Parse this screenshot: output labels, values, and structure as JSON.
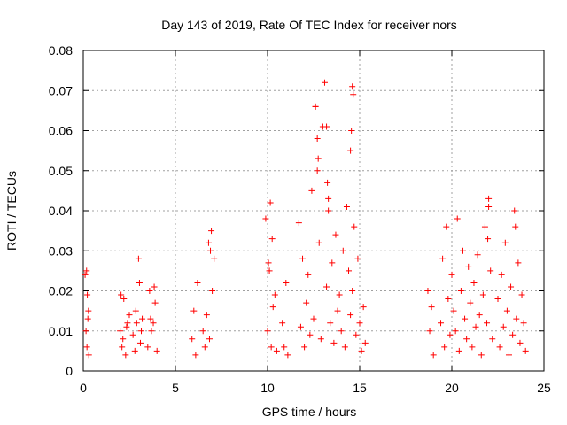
{
  "chart_data": {
    "type": "scatter",
    "title": "Day 143 of 2019, Rate Of TEC Index for receiver nors",
    "xlabel": "GPS time / hours",
    "ylabel": "ROTI / TECUs",
    "xlim": [
      0,
      25
    ],
    "ylim": [
      0,
      0.08
    ],
    "xticks": [
      0,
      5,
      10,
      15,
      20,
      25
    ],
    "yticks": [
      0,
      0.01,
      0.02,
      0.03,
      0.04,
      0.05,
      0.06,
      0.07,
      0.08
    ],
    "xtick_labels": [
      "0",
      "5",
      "10",
      "15",
      "20",
      "25"
    ],
    "ytick_labels": [
      "0",
      "0.01",
      "0.02",
      "0.03",
      "0.04",
      "0.05",
      "0.06",
      "0.07",
      "0.08"
    ],
    "grid": true,
    "marker": "+",
    "color": "#ff0000",
    "x": [
      0.1,
      0.15,
      0.2,
      0.25,
      0.3,
      0.18,
      0.22,
      0.28,
      2.0,
      2.1,
      2.2,
      2.3,
      2.4,
      2.5,
      2.05,
      2.15,
      2.35,
      2.7,
      2.8,
      2.9,
      3.0,
      3.1,
      3.2,
      2.85,
      3.05,
      3.15,
      3.5,
      3.6,
      3.7,
      3.8,
      3.9,
      4.0,
      3.65,
      3.85,
      5.9,
      6.0,
      6.1,
      6.2,
      6.5,
      6.6,
      6.7,
      6.8,
      6.9,
      7.0,
      7.1,
      6.95,
      6.85,
      9.9,
      10.0,
      10.1,
      10.2,
      10.3,
      10.4,
      10.5,
      10.05,
      10.25,
      10.15,
      10.8,
      10.9,
      11.0,
      11.1,
      11.7,
      11.8,
      11.9,
      12.0,
      12.1,
      12.2,
      12.3,
      12.4,
      12.5,
      12.6,
      12.7,
      12.8,
      12.9,
      13.0,
      13.1,
      13.2,
      13.3,
      13.4,
      13.5,
      13.6,
      13.7,
      13.8,
      13.9,
      14.0,
      14.1,
      14.2,
      14.3,
      14.4,
      14.5,
      14.6,
      14.7,
      14.8,
      14.9,
      15.0,
      15.1,
      15.2,
      15.3,
      12.6,
      12.7,
      12.75,
      13.2,
      13.25,
      13.3,
      14.6,
      14.55,
      14.5,
      14.65,
      18.7,
      18.8,
      18.9,
      19.0,
      19.4,
      19.5,
      19.6,
      19.7,
      19.8,
      19.9,
      20.0,
      20.1,
      20.2,
      20.3,
      20.4,
      20.5,
      20.6,
      20.7,
      20.8,
      20.9,
      21.0,
      21.1,
      21.2,
      21.3,
      21.4,
      21.5,
      21.6,
      21.7,
      21.8,
      21.9,
      22.0,
      22.1,
      22.2,
      22.0,
      21.95,
      22.5,
      22.6,
      22.7,
      22.8,
      22.9,
      23.0,
      23.1,
      23.2,
      23.3,
      23.4,
      23.5,
      23.6,
      23.7,
      23.8,
      23.9,
      24.0,
      23.45
    ],
    "y": [
      0.024,
      0.01,
      0.006,
      0.013,
      0.004,
      0.025,
      0.019,
      0.015,
      0.01,
      0.006,
      0.018,
      0.004,
      0.012,
      0.014,
      0.019,
      0.008,
      0.011,
      0.009,
      0.005,
      0.012,
      0.028,
      0.007,
      0.013,
      0.015,
      0.022,
      0.01,
      0.006,
      0.02,
      0.01,
      0.012,
      0.017,
      0.005,
      0.013,
      0.021,
      0.008,
      0.015,
      0.004,
      0.022,
      0.01,
      0.006,
      0.014,
      0.032,
      0.03,
      0.02,
      0.028,
      0.035,
      0.008,
      0.038,
      0.01,
      0.025,
      0.006,
      0.016,
      0.019,
      0.005,
      0.027,
      0.033,
      0.042,
      0.012,
      0.006,
      0.022,
      0.004,
      0.037,
      0.011,
      0.028,
      0.006,
      0.017,
      0.024,
      0.009,
      0.045,
      0.013,
      0.066,
      0.05,
      0.032,
      0.008,
      0.061,
      0.072,
      0.021,
      0.04,
      0.012,
      0.027,
      0.007,
      0.034,
      0.015,
      0.019,
      0.01,
      0.03,
      0.006,
      0.041,
      0.025,
      0.014,
      0.02,
      0.036,
      0.009,
      0.028,
      0.012,
      0.005,
      0.016,
      0.007,
      0.066,
      0.058,
      0.053,
      0.061,
      0.047,
      0.043,
      0.071,
      0.06,
      0.055,
      0.069,
      0.02,
      0.01,
      0.016,
      0.004,
      0.012,
      0.028,
      0.006,
      0.036,
      0.018,
      0.009,
      0.024,
      0.015,
      0.01,
      0.038,
      0.005,
      0.02,
      0.03,
      0.013,
      0.008,
      0.026,
      0.017,
      0.006,
      0.022,
      0.011,
      0.029,
      0.014,
      0.004,
      0.019,
      0.036,
      0.012,
      0.043,
      0.025,
      0.008,
      0.041,
      0.033,
      0.018,
      0.006,
      0.024,
      0.011,
      0.032,
      0.015,
      0.004,
      0.021,
      0.009,
      0.04,
      0.013,
      0.027,
      0.007,
      0.019,
      0.012,
      0.005,
      0.036
    ]
  }
}
